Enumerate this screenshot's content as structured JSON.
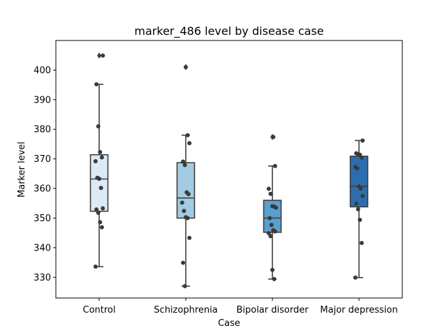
{
  "chart_data": {
    "type": "box",
    "title": "marker_486 level by disease case",
    "xlabel": "Case",
    "ylabel": "Marker level",
    "ylim": [
      323,
      410
    ],
    "yticks": [
      330,
      340,
      350,
      360,
      370,
      380,
      390,
      400
    ],
    "grid": false,
    "categories": [
      "Control",
      "Schizophrenia",
      "Bipolar disorder",
      "Major depression"
    ],
    "series": [
      {
        "category": "Control",
        "color": "#dce9f6",
        "box": {
          "whisker_low": 333.6,
          "q1": 352.3,
          "median": 363.2,
          "q3": 371.4,
          "whisker_high": 395.2
        },
        "outliers": [
          404.9
        ],
        "points": [
          333.6,
          346.9,
          348.6,
          351.8,
          352.9,
          353.3,
          360.2,
          363.3,
          363.6,
          369.2,
          370.5,
          372.3,
          381.0,
          395.2,
          404.9
        ]
      },
      {
        "category": "Schizophrenia",
        "color": "#a3cce3",
        "box": {
          "whisker_low": 327.0,
          "q1": 350.0,
          "median": 356.8,
          "q3": 368.7,
          "whisker_high": 378.0
        },
        "outliers": [
          401.0
        ],
        "points": [
          327.0,
          334.9,
          343.3,
          350.0,
          350.3,
          352.4,
          355.2,
          358.1,
          358.7,
          367.9,
          369.1,
          375.3,
          378.0,
          401.0
        ]
      },
      {
        "category": "Bipolar disorder",
        "color": "#5a9fcd",
        "box": {
          "whisker_low": 329.4,
          "q1": 345.2,
          "median": 350.0,
          "q3": 356.0,
          "whisker_high": 367.6
        },
        "outliers": [
          377.4
        ],
        "points": [
          329.4,
          332.5,
          343.9,
          344.9,
          345.5,
          345.9,
          347.7,
          350.0,
          353.5,
          353.9,
          354.0,
          358.2,
          359.9,
          367.6,
          377.4
        ]
      },
      {
        "category": "Major depression",
        "color": "#2c6dae",
        "box": {
          "whisker_low": 329.9,
          "q1": 353.8,
          "median": 360.7,
          "q3": 370.9,
          "whisker_high": 376.2
        },
        "outliers": [],
        "points": [
          329.9,
          341.6,
          349.4,
          353.0,
          354.9,
          357.5,
          360.0,
          360.7,
          366.8,
          367.3,
          370.4,
          371.4,
          371.6,
          371.9,
          376.2
        ]
      }
    ]
  }
}
